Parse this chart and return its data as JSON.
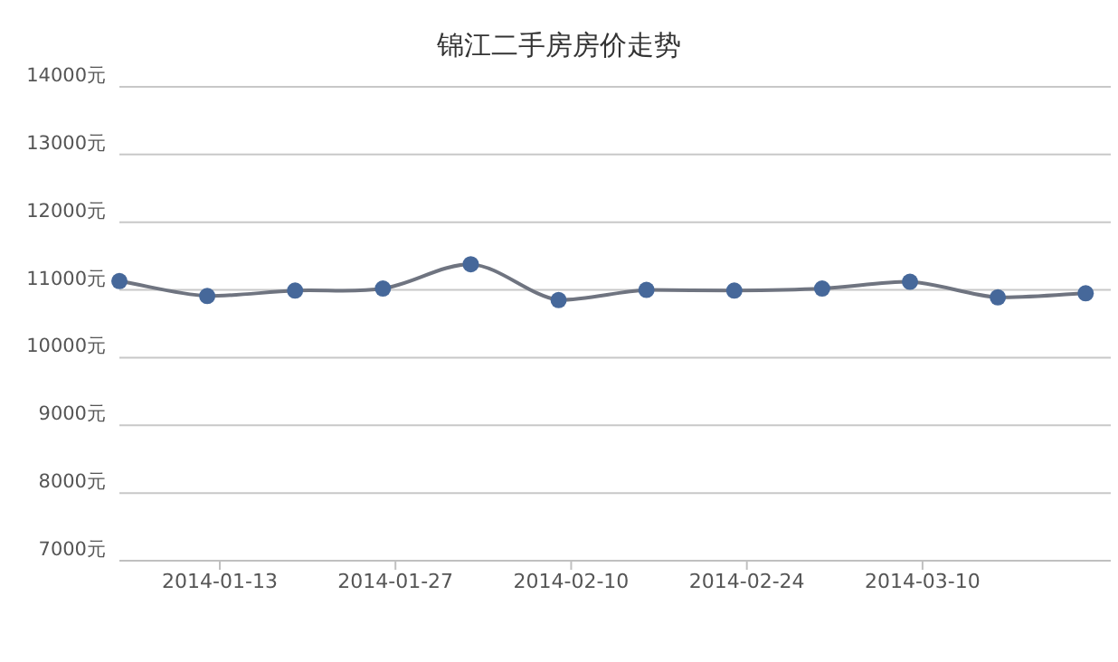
{
  "chart_data": {
    "type": "line",
    "title": "锦江二手房房价走势",
    "x": [
      "2014-01-05",
      "2014-01-12",
      "2014-01-19",
      "2014-01-26",
      "2014-02-02",
      "2014-02-09",
      "2014-02-16",
      "2014-02-23",
      "2014-03-02",
      "2014-03-09",
      "2014-03-16",
      "2014-03-23"
    ],
    "series": [
      {
        "color": "#46689a",
        "values": [
          11130,
          10910,
          10990,
          11020,
          11380,
          10850,
          11000,
          10990,
          11020,
          11120,
          10890,
          10950
        ]
      }
    ],
    "xlim": [
      "2014-01-05",
      "2014-03-25"
    ],
    "xticks": [
      "2014-01-13",
      "2014-01-27",
      "2014-02-10",
      "2014-02-24",
      "2014-03-10"
    ],
    "ylim": [
      7000,
      14000
    ],
    "yticks": [
      {
        "value": 7000,
        "label": "7000元"
      },
      {
        "value": 8000,
        "label": "8000元"
      },
      {
        "value": 9000,
        "label": "9000元"
      },
      {
        "value": 10000,
        "label": "10000元"
      },
      {
        "value": 11000,
        "label": "11000元"
      },
      {
        "value": 12000,
        "label": "12000元"
      },
      {
        "value": 13000,
        "label": "13000元"
      },
      {
        "value": 14000,
        "label": "14000元"
      }
    ],
    "grid": "y",
    "marker": "circle",
    "line_style": "solid"
  }
}
